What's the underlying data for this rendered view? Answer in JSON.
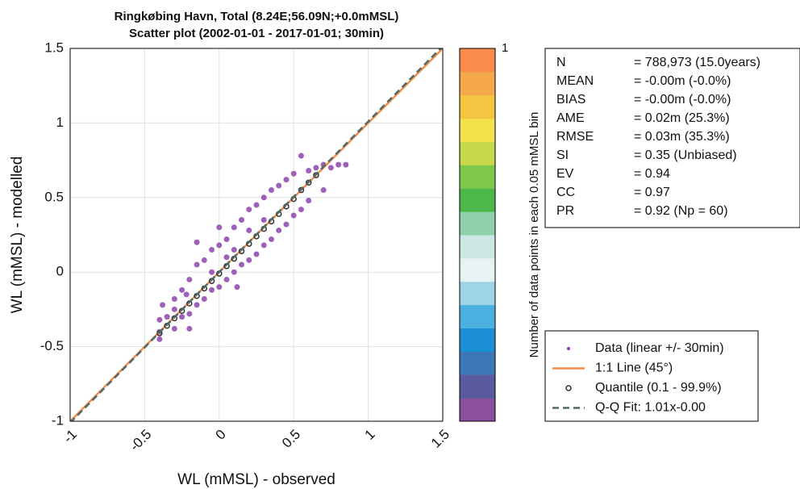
{
  "chart_data": {
    "type": "scatter",
    "title": "Ringkøbing Havn, Total (8.24E;56.09N;+0.0mMSL)",
    "subtitle": "Scatter plot  (2002-01-01 - 2017-01-01; 30min)",
    "x_label": "WL (mMSL) - observed",
    "y_label": "WL (mMSL) - modelled",
    "xlim": [
      -1,
      1.5
    ],
    "ylim": [
      -1,
      1.5
    ],
    "xticks": [
      -1,
      -0.5,
      0,
      0.5,
      1,
      1.5
    ],
    "yticks": [
      -1,
      -0.5,
      0,
      0.5,
      1,
      1.5
    ],
    "grid": true,
    "series": [
      {
        "name": "Data (linear +/- 30min)",
        "style": "dots",
        "color": "#8e44ad",
        "x": [
          -0.4,
          -0.4,
          -0.38,
          -0.35,
          -0.3,
          -0.3,
          -0.25,
          -0.25,
          -0.2,
          -0.2,
          -0.15,
          -0.15,
          -0.1,
          -0.1,
          -0.05,
          -0.05,
          0,
          0,
          0.05,
          0.05,
          0.1,
          0.1,
          0.15,
          0.15,
          0.2,
          0.2,
          0.25,
          0.25,
          0.3,
          0.3,
          0.35,
          0.35,
          0.4,
          0.4,
          0.45,
          0.45,
          0.5,
          0.5,
          0.55,
          0.55,
          0.6,
          0.6,
          0.65,
          0.7,
          0.7,
          0.75,
          0.8,
          0.85,
          -0.15,
          0,
          0.12,
          -0.2,
          -0.4,
          0.05,
          0.1,
          -0.05,
          -0.3,
          -0.22,
          0.2,
          0.3
        ],
        "values": [
          -0.32,
          -0.4,
          -0.22,
          -0.3,
          -0.18,
          -0.38,
          -0.12,
          -0.3,
          -0.05,
          -0.28,
          0.05,
          -0.22,
          0.08,
          -0.18,
          0.15,
          -0.12,
          0.18,
          -0.1,
          0.22,
          -0.05,
          0.3,
          0,
          0.35,
          0.05,
          0.42,
          0.08,
          0.45,
          0.12,
          0.5,
          0.18,
          0.55,
          0.22,
          0.58,
          0.28,
          0.62,
          0.32,
          0.66,
          0.38,
          0.78,
          0.42,
          0.68,
          0.48,
          0.7,
          0.72,
          0.55,
          0.7,
          0.72,
          0.72,
          0.2,
          0.3,
          -0.1,
          -0.38,
          -0.45,
          0.1,
          0.15,
          0,
          -0.25,
          -0.15,
          0.28,
          0.35
        ]
      },
      {
        "name": "1:1 Line (45°)",
        "style": "line",
        "color": "#f28e4b",
        "x": [
          -1,
          1.5
        ],
        "values": [
          -1,
          1.5
        ]
      },
      {
        "name": "Quantile (0.1 - 99.9%)",
        "style": "circles",
        "color": "#333333",
        "x": [
          -0.4,
          -0.35,
          -0.3,
          -0.25,
          -0.2,
          -0.15,
          -0.1,
          -0.05,
          0,
          0.05,
          0.1,
          0.15,
          0.2,
          0.25,
          0.3,
          0.35,
          0.4,
          0.45,
          0.5,
          0.55,
          0.6,
          0.65
        ],
        "values": [
          -0.41,
          -0.36,
          -0.31,
          -0.26,
          -0.21,
          -0.16,
          -0.11,
          -0.06,
          -0.01,
          0.04,
          0.09,
          0.14,
          0.19,
          0.24,
          0.29,
          0.34,
          0.39,
          0.44,
          0.49,
          0.55,
          0.6,
          0.65
        ]
      },
      {
        "name": "Q-Q Fit: 1.01x-0.00",
        "style": "dashed",
        "color": "#4d6b6b",
        "x": [
          -1,
          1.5
        ],
        "values": [
          -1.01,
          1.515
        ]
      }
    ],
    "colorbar": {
      "label": "Number of data points in each 0.05 mMSL bin",
      "lim": [
        0,
        1
      ],
      "ticks": [
        1
      ],
      "colors": [
        "#8a4f9e",
        "#5a5b9e",
        "#3c78b8",
        "#1a8fd6",
        "#4bb0e0",
        "#9fd4e6",
        "#e8f2f2",
        "#cce6e4",
        "#8fd0a8",
        "#4cb94a",
        "#7ec84a",
        "#c7d84b",
        "#f5e14a",
        "#f2c641",
        "#f5a94a",
        "#f98b4b"
      ]
    },
    "stats": [
      [
        "N",
        "= 788,973 (15.0years)"
      ],
      [
        "MEAN",
        "= -0.00m (-0.0%)"
      ],
      [
        "BIAS",
        "= -0.00m (-0.0%)"
      ],
      [
        "AME",
        "= 0.02m (25.3%)"
      ],
      [
        "RMSE",
        "= 0.03m (35.3%)"
      ],
      [
        "SI",
        "= 0.35 (Unbiased)"
      ],
      [
        "EV",
        "= 0.94"
      ],
      [
        "CC",
        "= 0.97"
      ],
      [
        "PR",
        "= 0.92 (Np = 60)"
      ]
    ]
  }
}
